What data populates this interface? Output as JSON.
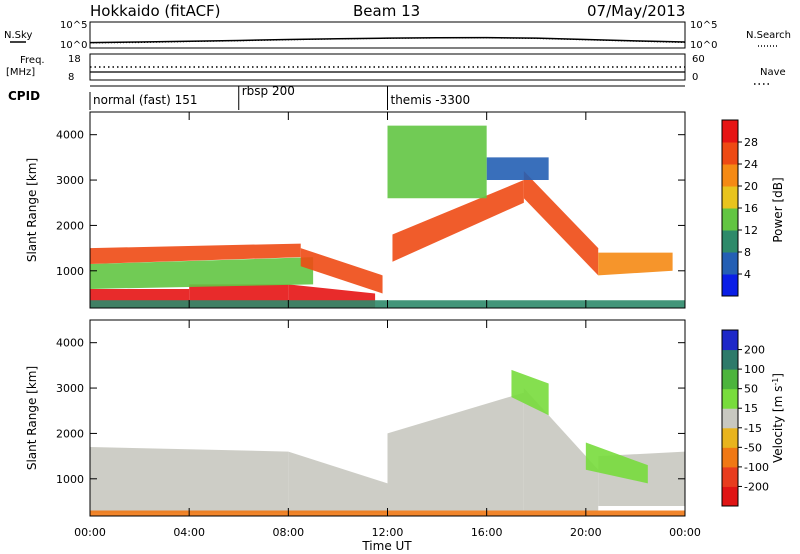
{
  "header": {
    "station": "Hokkaido (fitACF)",
    "beam": "Beam 13",
    "date": "07/May/2013"
  },
  "strip_labels": {
    "nsky": "N.Sky",
    "freq_line1": "Freq.",
    "freq_line2": "[MHz]",
    "cpid": "CPID",
    "nsearch": "N.Search",
    "nave": "Nave",
    "nsky_ticks": [
      "10^5",
      "10^0"
    ],
    "nsearch_ticks": [
      "10^5",
      "10^0"
    ],
    "freq_ticks": [
      "18",
      "8"
    ],
    "nave_ticks": [
      "60",
      "0"
    ]
  },
  "cpid_segments": [
    {
      "label": "normal (fast) 151",
      "start_hour": 0
    },
    {
      "label": "rbsp 200",
      "start_hour": 6
    },
    {
      "label": "themis -3300",
      "start_hour": 12
    }
  ],
  "axes": {
    "ylabel": "Slant Range [km]",
    "xlabel": "Time UT",
    "y_ticks": [
      "1000",
      "2000",
      "3000",
      "4000"
    ],
    "x_ticks": [
      "00:00",
      "04:00",
      "08:00",
      "12:00",
      "16:00",
      "20:00",
      "00:00"
    ]
  },
  "colorbars": {
    "power": {
      "title": "Power [dB]",
      "labels": [
        "4",
        "8",
        "12",
        "16",
        "20",
        "24",
        "28"
      ],
      "colors": [
        "#0a1ee6",
        "#245fb4",
        "#2e8a6a",
        "#62c542",
        "#e8c41e",
        "#f58a14",
        "#ee4a14",
        "#e61414"
      ]
    },
    "velocity": {
      "title_text": "Velocity [m s",
      "title_sup": "-1",
      "title_end": "]",
      "labels": [
        "200",
        "100",
        "50",
        "15",
        "-15",
        "-50",
        "-100",
        "-200"
      ],
      "colors": [
        "#1e28c8",
        "#2e7a6a",
        "#4cb43c",
        "#78dc3c",
        "#c8c8c0",
        "#e8b41e",
        "#f07814",
        "#e83c1e",
        "#e01414"
      ]
    }
  },
  "chart_data": [
    {
      "type": "line",
      "title": "Hokkaido (fitACF) Beam 13 07/May/2013",
      "series": [
        {
          "name": "N.Sky",
          "x": [
            0,
            2,
            4,
            6,
            8,
            10,
            12,
            14,
            16,
            18,
            20,
            22,
            24
          ],
          "values": [
            6,
            8,
            12,
            18,
            30,
            45,
            60,
            75,
            80,
            60,
            30,
            15,
            8
          ]
        },
        {
          "name": "N.Search",
          "x": [
            0,
            2,
            4,
            6,
            8,
            10,
            12,
            14,
            16,
            18,
            20,
            22,
            24
          ],
          "values": [
            5,
            6,
            10,
            15,
            25,
            40,
            55,
            65,
            70,
            50,
            25,
            12,
            6
          ]
        }
      ],
      "ylim": [
        1,
        100000
      ],
      "yscale": "log"
    },
    {
      "type": "line",
      "series": [
        {
          "name": "Freq.",
          "x": [
            0,
            24
          ],
          "values": [
            12,
            12
          ]
        },
        {
          "name": "Nave",
          "x": [
            0,
            24
          ],
          "values": [
            25,
            25
          ]
        }
      ]
    },
    {
      "type": "heatmap",
      "ylabel": "Slant Range [km]",
      "xlabel": "Time UT",
      "xlim": [
        0,
        24
      ],
      "ylim": [
        180,
        4500
      ],
      "colorbar_label": "Power [dB]",
      "value_range": [
        0,
        30
      ],
      "bands": [
        {
          "start": 0,
          "end": 4,
          "low": 180,
          "high": 600,
          "low_end": 180,
          "high_end": 600,
          "value": 29
        },
        {
          "start": 4,
          "end": 8,
          "low": 180,
          "high": 700,
          "low_end": 180,
          "high_end": 700,
          "value": 28
        },
        {
          "start": 8,
          "end": 11.5,
          "low": 180,
          "high": 700,
          "low_end": 180,
          "high_end": 500,
          "value": 29
        },
        {
          "start": 0,
          "end": 9,
          "low": 600,
          "high": 1150,
          "low_end": 700,
          "high_end": 1300,
          "value": 13
        },
        {
          "start": 0,
          "end": 8.5,
          "low": 1150,
          "high": 1500,
          "low_end": 1300,
          "high_end": 1600,
          "value": 24
        },
        {
          "start": 8.5,
          "end": 11.8,
          "low": 1100,
          "high": 1500,
          "low_end": 500,
          "high_end": 900,
          "value": 27
        },
        {
          "start": 12.2,
          "end": 17.5,
          "low": 1200,
          "high": 1800,
          "low_end": 2500,
          "high_end": 3000,
          "value": 25
        },
        {
          "start": 17.5,
          "end": 20.5,
          "low": 2600,
          "high": 3200,
          "low_end": 900,
          "high_end": 1500,
          "value": 27
        },
        {
          "start": 20.5,
          "end": 23.5,
          "low": 900,
          "high": 1400,
          "low_end": 1000,
          "high_end": 1400,
          "value": 22
        },
        {
          "start": 16,
          "end": 18.5,
          "low": 3000,
          "high": 3500,
          "low_end": 3000,
          "high_end": 3500,
          "value": 6
        },
        {
          "start": 12,
          "end": 16,
          "low": 2600,
          "high": 4200,
          "low_end": 2600,
          "high_end": 4200,
          "value": 15
        },
        {
          "start": 0,
          "end": 24,
          "low": 180,
          "high": 350,
          "low_end": 180,
          "high_end": 350,
          "value": 10
        }
      ]
    },
    {
      "type": "heatmap",
      "ylabel": "Slant Range [km]",
      "xlabel": "Time UT",
      "xlim": [
        0,
        24
      ],
      "ylim": [
        180,
        4500
      ],
      "colorbar_label": "Velocity [m s-1]",
      "value_range": [
        -200,
        200
      ],
      "bands": [
        {
          "start": 0,
          "end": 8,
          "low": 250,
          "high": 1700,
          "low_end": 250,
          "high_end": 1600,
          "value": 0
        },
        {
          "start": 8,
          "end": 12,
          "low": 250,
          "high": 1600,
          "low_end": 250,
          "high_end": 900,
          "value": 0
        },
        {
          "start": 12,
          "end": 17.5,
          "low": 300,
          "high": 2000,
          "low_end": 300,
          "high_end": 2900,
          "value": 0
        },
        {
          "start": 17.5,
          "end": 20.5,
          "low": 300,
          "high": 3000,
          "low_end": 300,
          "high_end": 1200,
          "value": 0
        },
        {
          "start": 20.5,
          "end": 24,
          "low": 400,
          "high": 1500,
          "low_end": 400,
          "high_end": 1600,
          "value": 0
        },
        {
          "start": 17,
          "end": 18.5,
          "low": 2800,
          "high": 3400,
          "low_end": 2400,
          "high_end": 3100,
          "value": 40
        },
        {
          "start": 20,
          "end": 22.5,
          "low": 1200,
          "high": 1800,
          "low_end": 900,
          "high_end": 1300,
          "value": 30
        },
        {
          "start": 0,
          "end": 24,
          "low": 180,
          "high": 300,
          "low_end": 180,
          "high_end": 300,
          "value": -60
        }
      ]
    }
  ]
}
